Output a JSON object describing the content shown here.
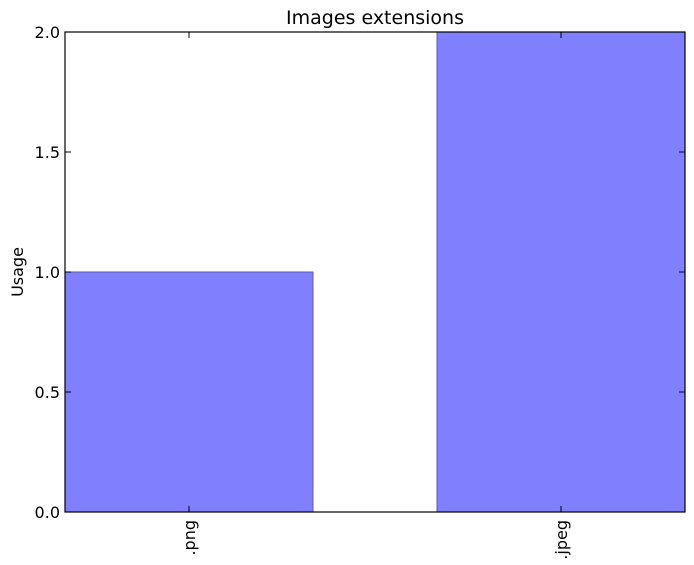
{
  "chart_data": {
    "type": "bar",
    "title": "Images extensions",
    "xlabel": "",
    "ylabel": "Usage",
    "categories": [
      ".png",
      ".jpeg"
    ],
    "values": [
      1,
      2
    ],
    "ylim": [
      0,
      2.0
    ],
    "yticks": [
      "0.0",
      "0.5",
      "1.0",
      "1.5",
      "2.0"
    ],
    "yticks_values": [
      0,
      0.5,
      1.0,
      1.5,
      2.0
    ],
    "bar_color": "#8080ff",
    "grid": false
  }
}
